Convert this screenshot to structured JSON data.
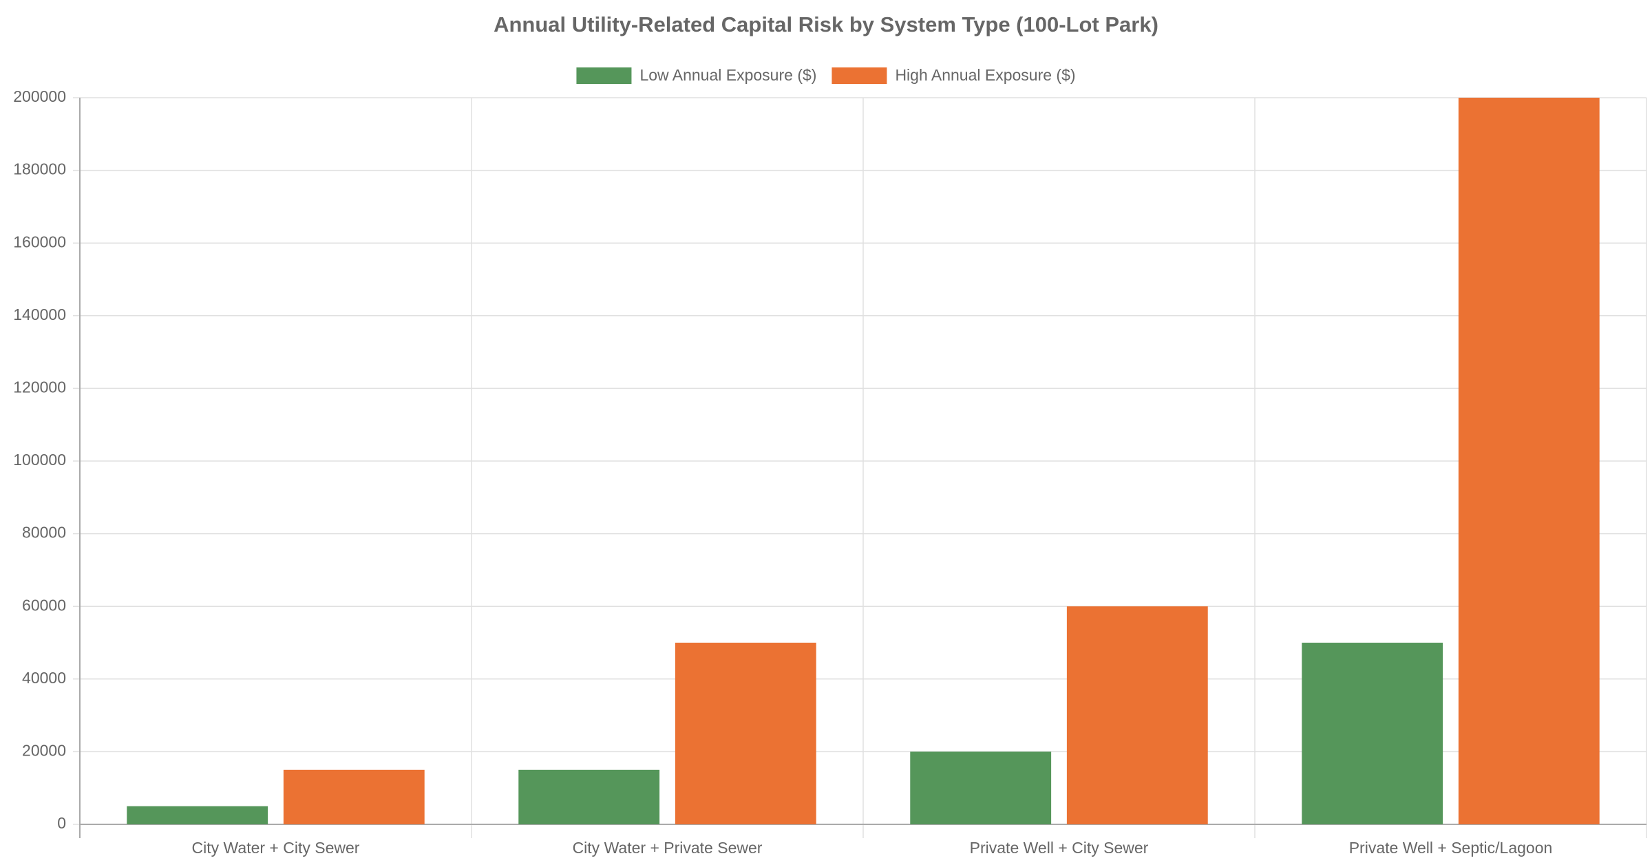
{
  "chart_data": {
    "type": "bar",
    "title": "Annual Utility-Related Capital Risk by System Type (100-Lot Park)",
    "categories": [
      "City Water + City Sewer",
      "City Water + Private Sewer",
      "Private Well + City Sewer",
      "Private Well + Septic/Lagoon"
    ],
    "series": [
      {
        "name": "Low Annual Exposure ($)",
        "color": "#55965a",
        "values": [
          5000,
          15000,
          20000,
          50000
        ]
      },
      {
        "name": "High Annual Exposure ($)",
        "color": "#eb7233",
        "values": [
          15000,
          50000,
          60000,
          200000
        ]
      }
    ],
    "ylim": [
      0,
      200000
    ],
    "yticks": [
      0,
      20000,
      40000,
      60000,
      80000,
      100000,
      120000,
      140000,
      160000,
      180000,
      200000
    ],
    "grid": true,
    "legend": "top"
  }
}
